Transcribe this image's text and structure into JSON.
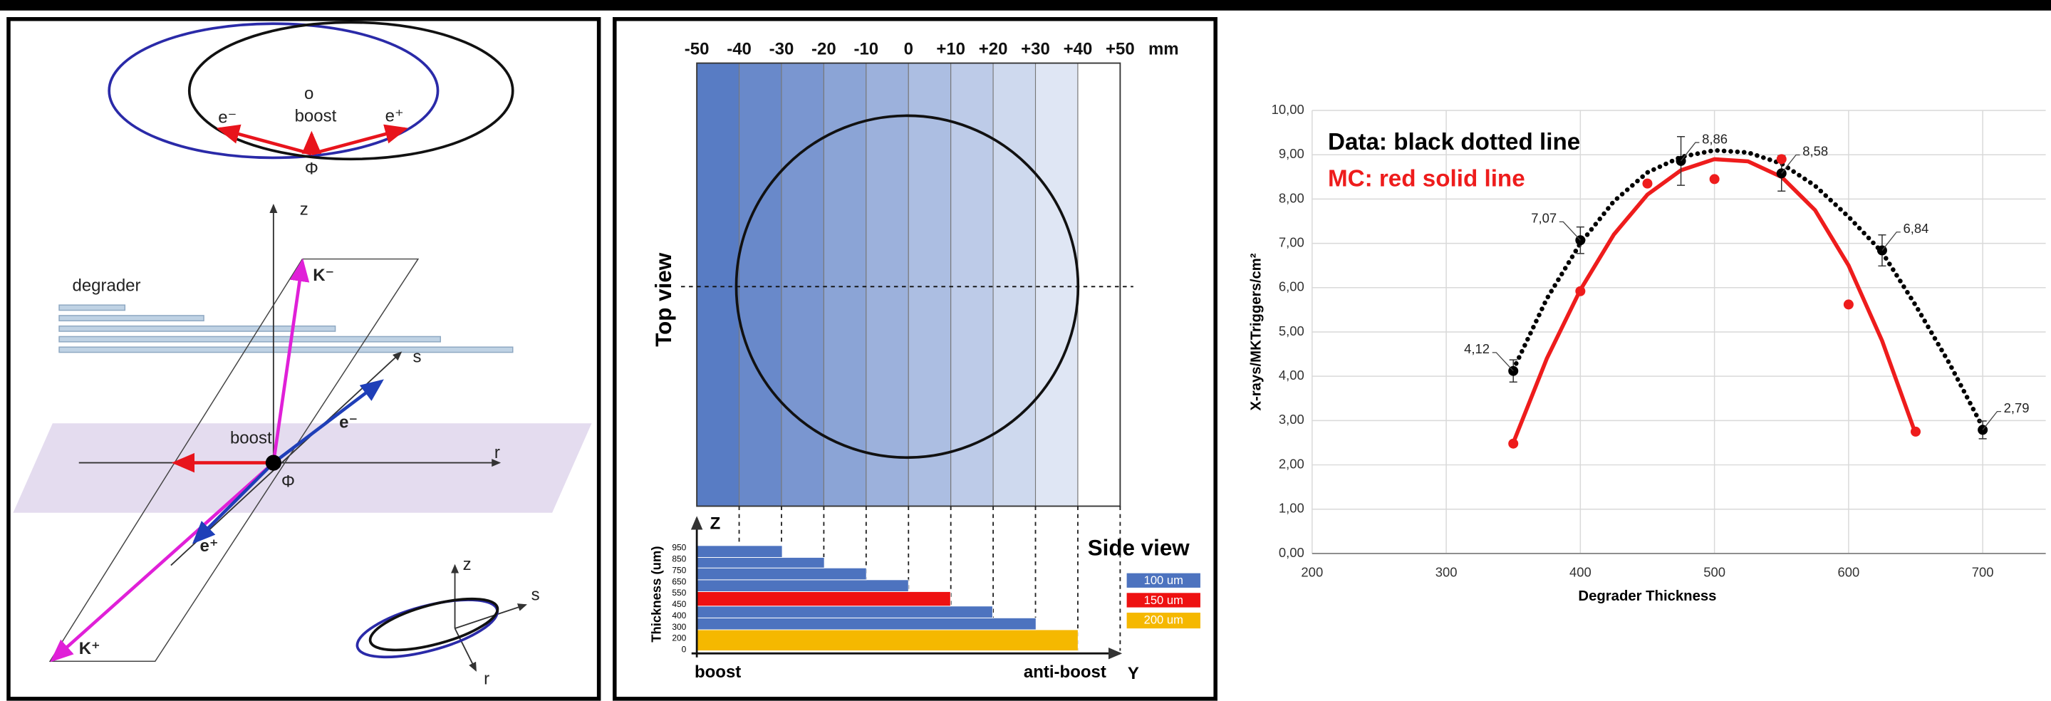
{
  "left_diagram": {
    "labels": [
      "o",
      "boost",
      "e⁻",
      "e⁺",
      "Φ",
      "z",
      "K⁻",
      "degrader",
      "s",
      "e⁻",
      "boost",
      "r",
      "Φ",
      "e⁺",
      "K⁺",
      "z",
      "s",
      "r"
    ]
  },
  "middle_diagram": {
    "scale_labels": [
      "-50",
      "-40",
      "-30",
      "-20",
      "-10",
      "0",
      "+10",
      "+20",
      "+30",
      "+40",
      "+50"
    ],
    "scale_unit": "mm",
    "top_view": "Top view",
    "side_view": "Side view",
    "z_axis": "Z",
    "thickness_title": "Thickness (um)",
    "thickness_ticks": [
      "950",
      "850",
      "750",
      "650",
      "550",
      "450",
      "400",
      "300",
      "200",
      "0"
    ],
    "legend": [
      "100 um",
      "150 um",
      "200 um"
    ],
    "boost": "boost",
    "anti_boost": "anti-boost",
    "y_axis": "Y"
  },
  "chart_data": {
    "type": "scatter",
    "x_label": "Degrader Thickness",
    "y_label": "X-rays/MKTriggers/cm²",
    "xlim": [
      200,
      747
    ],
    "xticks": [
      200,
      300,
      400,
      500,
      600,
      700
    ],
    "ylim": [
      0,
      10
    ],
    "yticks": [
      {
        "value": 0,
        "label": "0,00"
      },
      {
        "value": 1,
        "label": "1,00"
      },
      {
        "value": 2,
        "label": "2,00"
      },
      {
        "value": 3,
        "label": "3,00"
      },
      {
        "value": 4,
        "label": "4,00"
      },
      {
        "value": 5,
        "label": "5,00"
      },
      {
        "value": 6,
        "label": "6,00"
      },
      {
        "value": 7,
        "label": "7,00"
      },
      {
        "value": 8,
        "label": "8,00"
      },
      {
        "value": 9,
        "label": "9,00"
      },
      {
        "value": 10,
        "label": "10,00"
      }
    ],
    "grid": true,
    "series": [
      {
        "name": "Data: black dotted line",
        "color": "#000000",
        "x": [
          350,
          400,
          475,
          550,
          625,
          700
        ],
        "values": [
          4.12,
          7.07,
          8.86,
          8.58,
          6.84,
          2.79
        ],
        "errors": [
          0.25,
          0.3,
          0.55,
          0.4,
          0.35,
          0.2
        ],
        "value_labels": [
          "4,12",
          "7,07",
          "8,86",
          "8,58",
          "6,84",
          "2,79"
        ]
      },
      {
        "color": "#000000",
        "line_style": "dotted",
        "x": [
          350,
          375,
          400,
          425,
          450,
          475,
          500,
          525,
          550,
          575,
          600,
          625,
          650,
          675,
          700
        ],
        "values": [
          4.15,
          5.75,
          7.0,
          7.95,
          8.6,
          8.95,
          9.1,
          9.05,
          8.8,
          8.3,
          7.6,
          6.8,
          5.6,
          4.3,
          2.85
        ]
      },
      {
        "name": "MC: red solid line",
        "color": "#ee1c1c",
        "x": [
          350,
          400,
          450,
          500,
          550,
          600,
          650
        ],
        "values": [
          2.48,
          5.92,
          8.35,
          8.45,
          8.9,
          5.62,
          2.75
        ]
      },
      {
        "color": "#ee1c1c",
        "line_style": "solid",
        "x": [
          350,
          375,
          400,
          425,
          450,
          475,
          500,
          525,
          550,
          575,
          600,
          625,
          650
        ],
        "values": [
          2.5,
          4.4,
          5.95,
          7.2,
          8.1,
          8.65,
          8.9,
          8.85,
          8.5,
          7.75,
          6.5,
          4.8,
          2.7
        ]
      }
    ]
  }
}
